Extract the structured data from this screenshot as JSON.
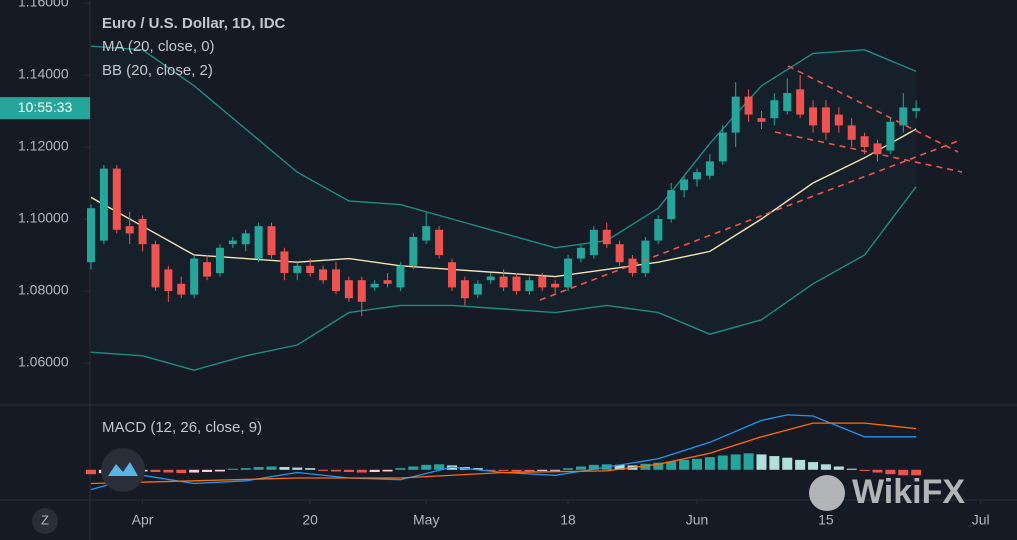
{
  "chart_data": [
    {
      "type": "candlestick",
      "title": "Euro / U.S. Dollar, 1D, IDC",
      "up_color": "#26a69a",
      "down_color": "#ef5350",
      "countdown": "10:55:33",
      "x": [
        0,
        1,
        2,
        3,
        4,
        5,
        6,
        7,
        8,
        9,
        10,
        11,
        12,
        13,
        14,
        15,
        16,
        17,
        18,
        19,
        20,
        21,
        22,
        23,
        24,
        25,
        26,
        27,
        28,
        29,
        30,
        31,
        32,
        33,
        34,
        35,
        36,
        37,
        38,
        39,
        40,
        41,
        42,
        43,
        44,
        45,
        46,
        47,
        48,
        49,
        50,
        51,
        52,
        53,
        54,
        55,
        56,
        57,
        58,
        59,
        60,
        61,
        62,
        63,
        64
      ],
      "open": [
        1.088,
        1.094,
        1.114,
        1.098,
        1.1,
        1.093,
        1.086,
        1.082,
        1.079,
        1.088,
        1.085,
        1.093,
        1.093,
        1.089,
        1.098,
        1.091,
        1.085,
        1.087,
        1.086,
        1.086,
        1.083,
        1.083,
        1.081,
        1.083,
        1.081,
        1.087,
        1.094,
        1.097,
        1.088,
        1.083,
        1.079,
        1.083,
        1.084,
        1.084,
        1.08,
        1.084,
        1.082,
        1.081,
        1.089,
        1.09,
        1.097,
        1.093,
        1.089,
        1.085,
        1.094,
        1.1,
        1.108,
        1.111,
        1.112,
        1.116,
        1.124,
        1.134,
        1.128,
        1.128,
        1.13,
        1.136,
        1.131,
        1.131,
        1.129,
        1.126,
        1.123,
        1.121,
        1.119,
        1.126,
        1.13
      ],
      "high": [
        1.104,
        1.115,
        1.115,
        1.102,
        1.101,
        1.094,
        1.087,
        1.084,
        1.09,
        1.09,
        1.093,
        1.095,
        1.097,
        1.099,
        1.099,
        1.092,
        1.088,
        1.089,
        1.087,
        1.088,
        1.084,
        1.084,
        1.083,
        1.085,
        1.088,
        1.096,
        1.102,
        1.098,
        1.089,
        1.084,
        1.083,
        1.085,
        1.086,
        1.085,
        1.084,
        1.085,
        1.083,
        1.09,
        1.093,
        1.098,
        1.099,
        1.094,
        1.09,
        1.095,
        1.101,
        1.11,
        1.112,
        1.114,
        1.118,
        1.126,
        1.138,
        1.136,
        1.13,
        1.135,
        1.139,
        1.14,
        1.133,
        1.133,
        1.131,
        1.128,
        1.124,
        1.122,
        1.128,
        1.135,
        1.133
      ],
      "low": [
        1.086,
        1.093,
        1.096,
        1.093,
        1.091,
        1.08,
        1.077,
        1.078,
        1.078,
        1.083,
        1.084,
        1.092,
        1.091,
        1.088,
        1.089,
        1.083,
        1.083,
        1.084,
        1.082,
        1.079,
        1.077,
        1.073,
        1.08,
        1.081,
        1.08,
        1.086,
        1.093,
        1.089,
        1.08,
        1.076,
        1.078,
        1.082,
        1.08,
        1.079,
        1.079,
        1.08,
        1.079,
        1.08,
        1.088,
        1.089,
        1.092,
        1.087,
        1.084,
        1.084,
        1.093,
        1.099,
        1.106,
        1.109,
        1.111,
        1.115,
        1.12,
        1.127,
        1.125,
        1.126,
        1.129,
        1.128,
        1.124,
        1.122,
        1.124,
        1.12,
        1.118,
        1.116,
        1.118,
        1.124,
        1.128
      ],
      "close": [
        1.103,
        1.114,
        1.097,
        1.096,
        1.093,
        1.081,
        1.08,
        1.079,
        1.089,
        1.084,
        1.092,
        1.094,
        1.096,
        1.098,
        1.09,
        1.085,
        1.087,
        1.085,
        1.083,
        1.08,
        1.078,
        1.077,
        1.082,
        1.082,
        1.087,
        1.095,
        1.098,
        1.09,
        1.081,
        1.078,
        1.082,
        1.084,
        1.081,
        1.08,
        1.083,
        1.081,
        1.081,
        1.089,
        1.092,
        1.097,
        1.093,
        1.088,
        1.085,
        1.094,
        1.1,
        1.108,
        1.111,
        1.113,
        1.116,
        1.124,
        1.134,
        1.129,
        1.127,
        1.133,
        1.135,
        1.129,
        1.126,
        1.124,
        1.126,
        1.122,
        1.12,
        1.118,
        1.127,
        1.131,
        1.1308
      ],
      "indicators": [
        {
          "name": "MA (20, close, 0)",
          "lines": [
            {
              "color": "#f3e3b5",
              "x": [
                0,
                4,
                8,
                12,
                16,
                20,
                24,
                28,
                32,
                36,
                40,
                44,
                48,
                52,
                56,
                60,
                64
              ],
              "values": [
                1.106,
                1.098,
                1.09,
                1.089,
                1.088,
                1.089,
                1.087,
                1.086,
                1.085,
                1.084,
                1.086,
                1.088,
                1.091,
                1.1,
                1.11,
                1.117,
                1.125
              ]
            }
          ]
        },
        {
          "name": "BB (20, close, 2)",
          "fill": "rgba(38,166,154,0.05)",
          "lines": [
            {
              "color": "#1f8c84",
              "x": [
                0,
                4,
                8,
                12,
                16,
                20,
                24,
                28,
                32,
                36,
                40,
                44,
                48,
                52,
                56,
                60,
                64
              ],
              "values": [
                1.148,
                1.147,
                1.137,
                1.125,
                1.113,
                1.105,
                1.104,
                1.1,
                1.096,
                1.092,
                1.094,
                1.103,
                1.121,
                1.137,
                1.146,
                1.147,
                1.141
              ]
            },
            {
              "color": "#1f8c84",
              "x": [
                0,
                4,
                8,
                12,
                16,
                20,
                24,
                28,
                32,
                36,
                40,
                44,
                48,
                52,
                56,
                60,
                64
              ],
              "values": [
                1.063,
                1.062,
                1.058,
                1.062,
                1.065,
                1.074,
                1.076,
                1.076,
                1.075,
                1.074,
                1.076,
                1.074,
                1.068,
                1.072,
                1.082,
                1.09,
                1.109
              ]
            }
          ]
        }
      ],
      "xlim": [
        0,
        70.5
      ],
      "xticks": [
        {
          "value": 4,
          "label": "Apr"
        },
        {
          "value": 17,
          "label": "20"
        },
        {
          "value": 26,
          "label": "May"
        },
        {
          "value": 37,
          "label": "18"
        },
        {
          "value": 47,
          "label": "Jun"
        },
        {
          "value": 57,
          "label": "15"
        },
        {
          "value": 69,
          "label": "Jul"
        }
      ],
      "ylim": [
        1.04833,
        1.16083
      ],
      "yticks": [
        {
          "value": 1.06,
          "label": "1.06000"
        },
        {
          "value": 1.08,
          "label": "1.08000"
        },
        {
          "value": 1.1,
          "label": "1.10000"
        },
        {
          "value": 1.12,
          "label": "1.12000"
        },
        {
          "value": 1.14,
          "label": "1.14000"
        },
        {
          "value": 1.16,
          "label": "1.16000"
        }
      ]
    },
    {
      "type": "macd",
      "title": "MACD (12, 26, close, 9)",
      "lines": [
        {
          "color": "#2196f3",
          "x": [
            0,
            4,
            8,
            12,
            16,
            20,
            24,
            28,
            32,
            36,
            40,
            44,
            48,
            52,
            54,
            56,
            60,
            62,
            64
          ],
          "values": [
            -0.0036,
            -0.001,
            -0.0025,
            -0.002,
            -0.0005,
            -0.0015,
            -0.0018,
            0.0005,
            -0.0005,
            -0.001,
            0.0005,
            0.002,
            0.005,
            0.009,
            0.01,
            0.0098,
            0.006,
            0.006,
            0.006
          ]
        },
        {
          "color": "#ff6d00",
          "x": [
            0,
            8,
            16,
            24,
            32,
            40,
            44,
            48,
            52,
            56,
            60,
            64
          ],
          "values": [
            -0.0025,
            -0.002,
            -0.0015,
            -0.0015,
            -0.0005,
            -0.0002,
            0.001,
            0.003,
            0.006,
            0.0085,
            0.0085,
            0.0075
          ]
        }
      ],
      "histogram": [
        -0.0008,
        -0.0006,
        -0.0005,
        -0.0004,
        -0.0003,
        -0.0004,
        -0.0005,
        -0.0006,
        -0.0005,
        -0.0004,
        -0.0003,
        0.0002,
        0.0003,
        0.0005,
        0.0006,
        0.0005,
        0.0004,
        0.0003,
        -0.0002,
        -0.0003,
        -0.0004,
        -0.0005,
        -0.0004,
        -0.0003,
        0.0003,
        0.0006,
        0.0009,
        0.001,
        0.0008,
        0.0005,
        0.0003,
        -0.0001,
        -0.0002,
        -0.0003,
        -0.0003,
        -0.0002,
        -0.0001,
        0.0003,
        0.0006,
        0.0009,
        0.001,
        0.0009,
        0.0008,
        0.0011,
        0.0013,
        0.0015,
        0.0018,
        0.002,
        0.0023,
        0.0026,
        0.0028,
        0.003,
        0.0028,
        0.0025,
        0.0022,
        0.0018,
        0.0014,
        0.001,
        0.0006,
        0.0002,
        -0.0002,
        -0.0005,
        -0.0008,
        -0.001,
        -0.001
      ],
      "ylim": [
        -0.0055,
        0.0118
      ]
    }
  ],
  "timezone_button": "Z",
  "watermark": "WikiFX"
}
